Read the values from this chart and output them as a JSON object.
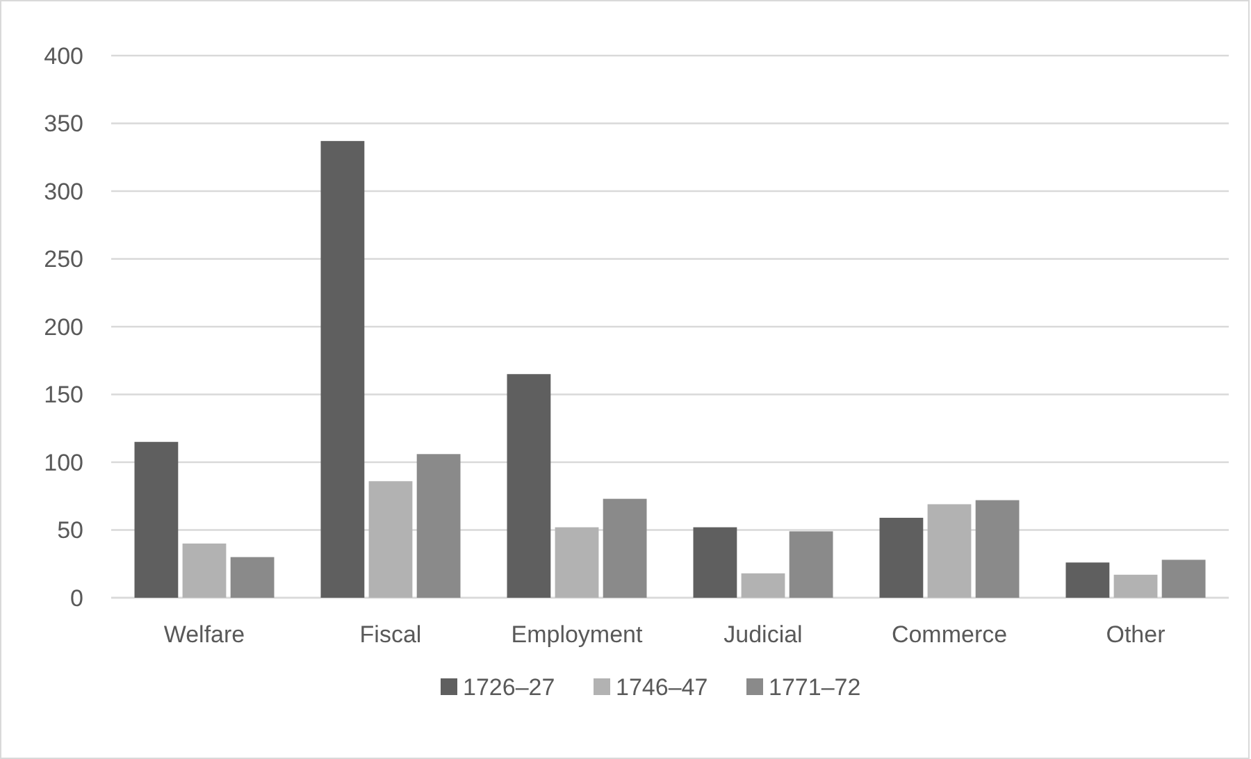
{
  "chart_data": {
    "type": "bar",
    "categories": [
      "Welfare",
      "Fiscal",
      "Employment",
      "Judicial",
      "Commerce",
      "Other"
    ],
    "series": [
      {
        "name": "1726–27",
        "color": "#5f5f5f",
        "values": [
          115,
          337,
          165,
          52,
          59,
          26
        ]
      },
      {
        "name": "1746–47",
        "color": "#b2b2b2",
        "values": [
          40,
          86,
          52,
          18,
          69,
          17
        ]
      },
      {
        "name": "1771–72",
        "color": "#8a8a8a",
        "values": [
          30,
          106,
          73,
          49,
          72,
          28
        ]
      }
    ],
    "ylim": [
      0,
      400
    ],
    "yticks": [
      0,
      50,
      100,
      150,
      200,
      250,
      300,
      350,
      400
    ],
    "grid": "y",
    "legend": "bottom"
  }
}
